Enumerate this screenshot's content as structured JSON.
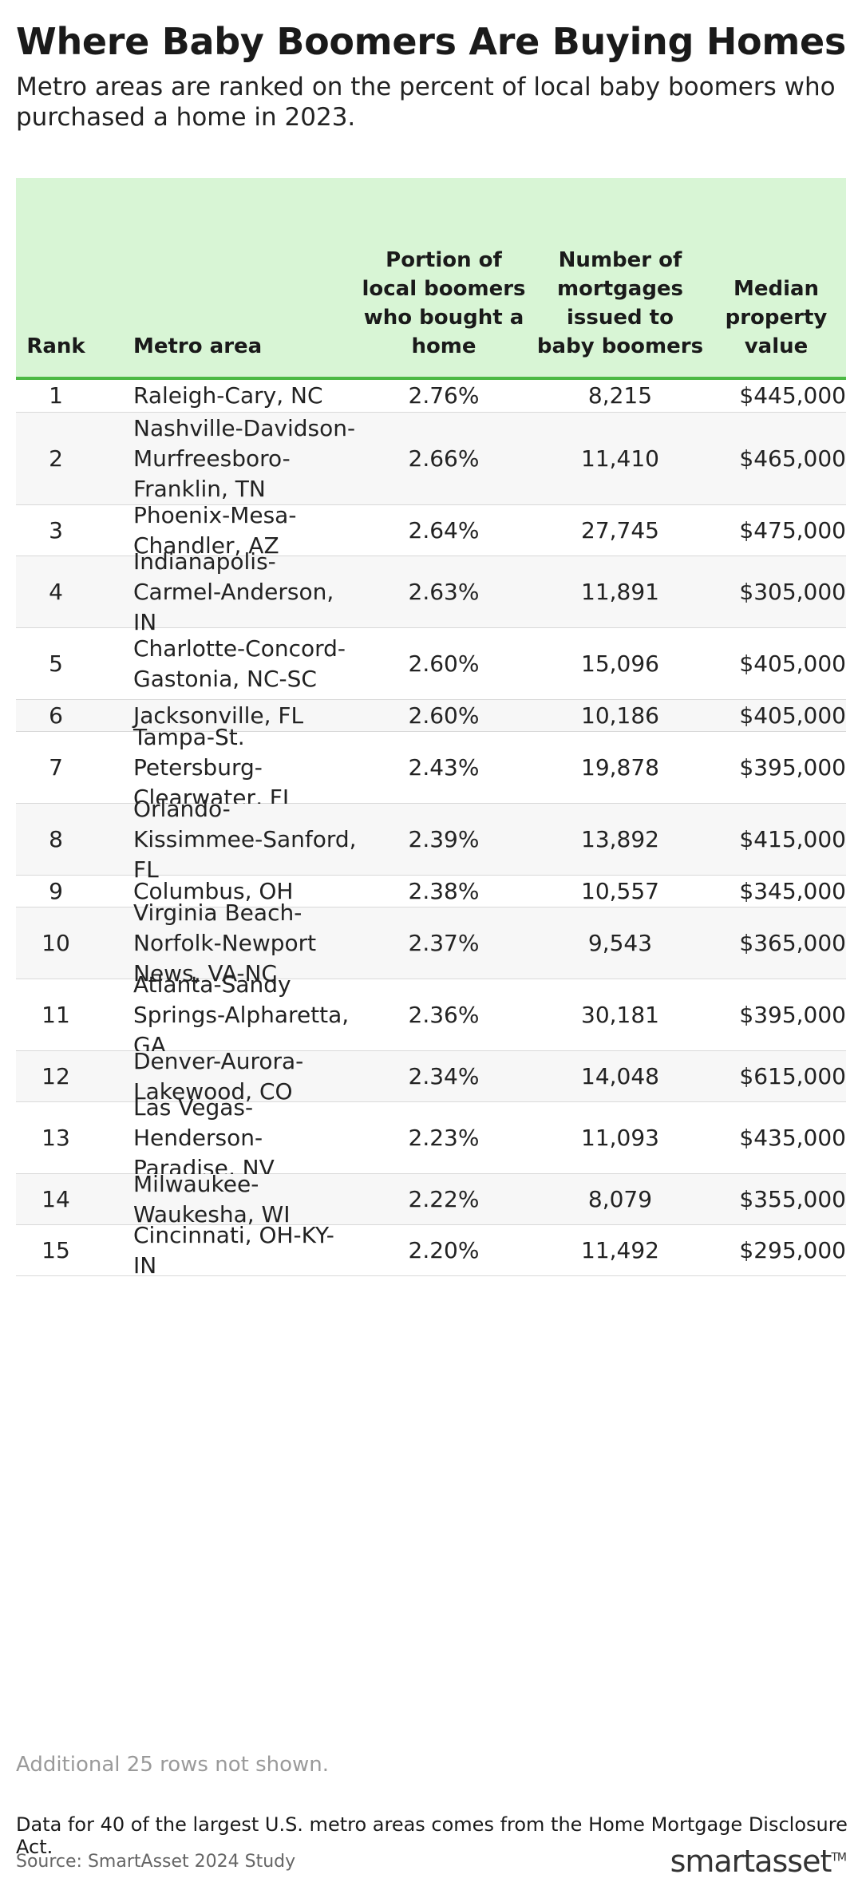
{
  "header": {
    "title": "Where Baby Boomers Are Buying Homes",
    "subtitle": "Metro areas are ranked on the percent of local baby boomers who purchased a home in 2023."
  },
  "chart_data": {
    "type": "table",
    "columns": [
      "Rank",
      "Metro area",
      "Portion of local boomers who bought a home",
      "Number of mortgages issued to baby boomers",
      "Median property value"
    ],
    "rows": [
      [
        "1",
        "Raleigh-Cary, NC",
        "2.76%",
        "8,215",
        "$445,000"
      ],
      [
        "2",
        "Nashville-Davidson-Murfreesboro-Franklin, TN",
        "2.66%",
        "11,410",
        "$465,000"
      ],
      [
        "3",
        "Phoenix-Mesa-Chandler, AZ",
        "2.64%",
        "27,745",
        "$475,000"
      ],
      [
        "4",
        "Indianapolis-Carmel-Anderson, IN",
        "2.63%",
        "11,891",
        "$305,000"
      ],
      [
        "5",
        "Charlotte-Concord-Gastonia, NC-SC",
        "2.60%",
        "15,096",
        "$405,000"
      ],
      [
        "6",
        "Jacksonville, FL",
        "2.60%",
        "10,186",
        "$405,000"
      ],
      [
        "7",
        "Tampa-St. Petersburg-Clearwater, FL",
        "2.43%",
        "19,878",
        "$395,000"
      ],
      [
        "8",
        "Orlando-Kissimmee-Sanford, FL",
        "2.39%",
        "13,892",
        "$415,000"
      ],
      [
        "9",
        "Columbus, OH",
        "2.38%",
        "10,557",
        "$345,000"
      ],
      [
        "10",
        "Virginia Beach-Norfolk-Newport News, VA-NC",
        "2.37%",
        "9,543",
        "$365,000"
      ],
      [
        "11",
        "Atlanta-Sandy Springs-Alpharetta, GA",
        "2.36%",
        "30,181",
        "$395,000"
      ],
      [
        "12",
        "Denver-Aurora-Lakewood, CO",
        "2.34%",
        "14,048",
        "$615,000"
      ],
      [
        "13",
        "Las Vegas-Henderson-Paradise, NV",
        "2.23%",
        "11,093",
        "$435,000"
      ],
      [
        "14",
        "Milwaukee-Waukesha, WI",
        "2.22%",
        "8,079",
        "$355,000"
      ],
      [
        "15",
        "Cincinnati, OH-KY-IN",
        "2.20%",
        "11,492",
        "$295,000"
      ]
    ]
  },
  "footer": {
    "more_rows": "Additional 25 rows not shown.",
    "note": "Data for 40 of the largest U.S. metro areas comes from the Home Mortgage Disclosure Act.",
    "source": "Source: SmartAsset 2024 Study",
    "logo_text": "smartasset",
    "logo_mark": "TM"
  },
  "colors": {
    "header_bg": "#d8f5d5",
    "header_rule": "#4cb944",
    "alt_row": "#f7f7f7"
  }
}
